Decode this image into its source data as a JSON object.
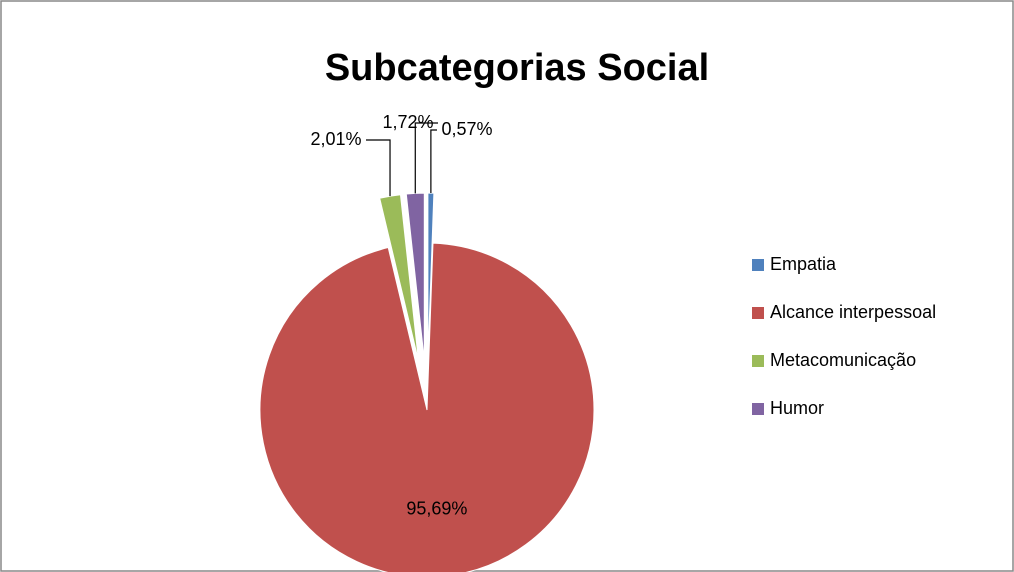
{
  "chart_data": {
    "type": "pie",
    "title": "Subcategorias Social",
    "categories": [
      "Empatia",
      "Alcance interpessoal",
      "Metacomunicação",
      "Humor"
    ],
    "values": [
      0.57,
      95.69,
      2.01,
      1.72
    ],
    "value_labels": [
      "0,57%",
      "95,69%",
      "2,01%",
      "1,72%"
    ],
    "colors": [
      "#4f81bd",
      "#c0504d",
      "#9bbb59",
      "#8064a2"
    ],
    "legend": "right"
  }
}
